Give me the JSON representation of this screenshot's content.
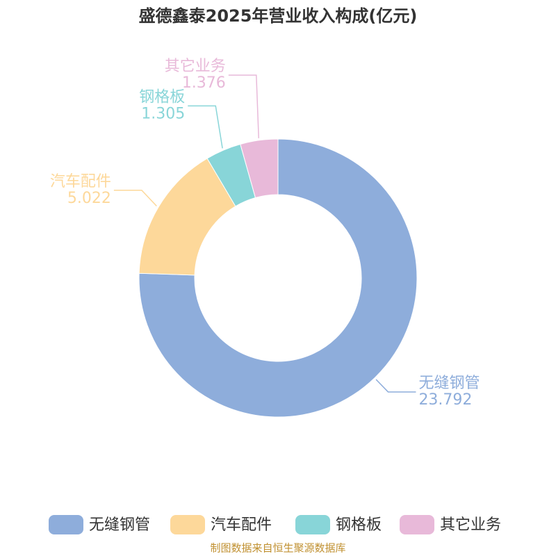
{
  "chart_data": {
    "type": "donut",
    "title": "盛德鑫泰2025年营业收入构成(亿元)",
    "categories": [
      "无缝钢管",
      "汽车配件",
      "钢格板",
      "其它业务"
    ],
    "values": [
      23.792,
      5.022,
      1.305,
      1.376
    ],
    "colors": [
      "#8eaddb",
      "#fdd89a",
      "#88d5d8",
      "#e8b9d9"
    ],
    "legend": "bottom",
    "source": "制图数据来自恒生聚源数据库"
  }
}
